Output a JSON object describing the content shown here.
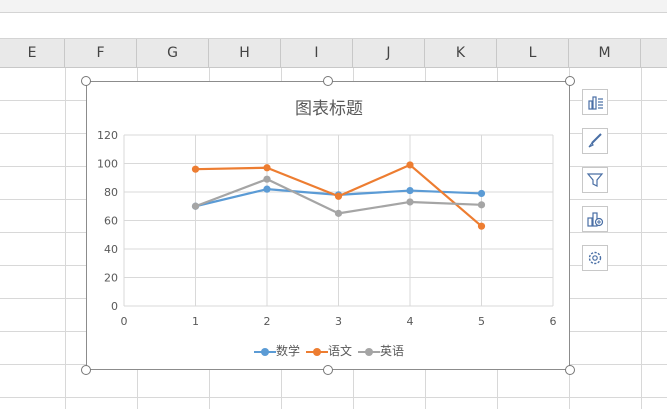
{
  "spreadsheet": {
    "columns": [
      "E",
      "F",
      "G",
      "H",
      "I",
      "J",
      "K",
      "L",
      "M"
    ]
  },
  "chart_data": {
    "type": "line",
    "title": "图表标题",
    "x": [
      1,
      2,
      3,
      4,
      5
    ],
    "xlim": [
      0,
      6
    ],
    "ylim": [
      0,
      120
    ],
    "xticks": [
      0,
      1,
      2,
      3,
      4,
      5,
      6
    ],
    "yticks": [
      0,
      20,
      40,
      60,
      80,
      100,
      120
    ],
    "grid": true,
    "legend_position": "bottom",
    "series": [
      {
        "name": "数学",
        "values": [
          70,
          82,
          78,
          81,
          79
        ],
        "color": "#5b9bd5"
      },
      {
        "name": "语文",
        "values": [
          96,
          97,
          77,
          99,
          56
        ],
        "color": "#ed7d31"
      },
      {
        "name": "英语",
        "values": [
          70,
          89,
          65,
          73,
          71
        ],
        "color": "#a5a5a5"
      }
    ]
  },
  "side_buttons": [
    {
      "icon": "chart-elements-icon"
    },
    {
      "icon": "chart-style-brush-icon"
    },
    {
      "icon": "chart-filter-icon"
    },
    {
      "icon": "chart-layout-icon"
    },
    {
      "icon": "settings-gear-icon"
    }
  ]
}
